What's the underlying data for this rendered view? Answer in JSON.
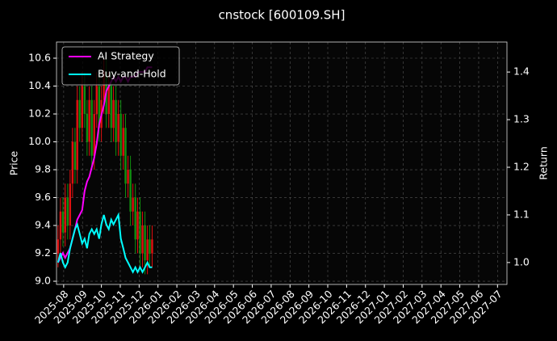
{
  "chart_data": {
    "type": "candlestick",
    "title": "cnstock [600109.SH]",
    "ylabel": "Price",
    "y2label": "Return",
    "x": [
      -0.3,
      -0.17,
      -0.04,
      0.08,
      0.21,
      0.34,
      0.47,
      0.6,
      0.72,
      0.85,
      0.98,
      1.11,
      1.24,
      1.36,
      1.49,
      1.62,
      1.75,
      1.88,
      2.0,
      2.13,
      2.26,
      2.39,
      2.52,
      2.64,
      2.77,
      2.9,
      3.03,
      3.16,
      3.28,
      3.41,
      3.54,
      3.67,
      3.8,
      3.92,
      4.05,
      4.18,
      4.31,
      4.44,
      4.56,
      4.69
    ],
    "open": [
      9.2,
      9.3,
      9.5,
      9.35,
      9.6,
      9.4,
      9.7,
      10.0,
      9.8,
      10.3,
      10.1,
      10.4,
      10.2,
      10.0,
      10.3,
      9.9,
      10.2,
      10.4,
      10.1,
      10.3,
      10.5,
      10.2,
      10.4,
      10.1,
      10.3,
      10.0,
      10.2,
      9.9,
      10.1,
      9.7,
      9.8,
      9.5,
      9.6,
      9.3,
      9.5,
      9.2,
      9.4,
      9.15,
      9.3,
      9.2
    ],
    "high": [
      9.4,
      9.6,
      9.6,
      9.7,
      9.7,
      9.8,
      10.1,
      10.1,
      10.4,
      10.4,
      10.5,
      10.5,
      10.3,
      10.4,
      10.4,
      10.3,
      10.5,
      10.5,
      10.4,
      10.6,
      10.6,
      10.5,
      10.5,
      10.4,
      10.4,
      10.3,
      10.3,
      10.2,
      10.2,
      9.9,
      9.9,
      9.7,
      9.7,
      9.6,
      9.6,
      9.5,
      9.5,
      9.4,
      9.4,
      9.4
    ],
    "low": [
      9.1,
      9.2,
      9.25,
      9.25,
      9.3,
      9.3,
      9.6,
      9.7,
      9.7,
      10.0,
      10.0,
      10.1,
      9.9,
      9.9,
      9.8,
      9.8,
      10.1,
      10.0,
      10.0,
      10.2,
      10.1,
      10.1,
      10.0,
      10.0,
      9.9,
      9.9,
      9.8,
      9.8,
      9.6,
      9.6,
      9.4,
      9.4,
      9.2,
      9.2,
      9.1,
      9.1,
      9.05,
      9.05,
      9.1,
      9.1
    ],
    "close": [
      9.3,
      9.5,
      9.35,
      9.6,
      9.4,
      9.7,
      10.0,
      9.8,
      10.3,
      10.1,
      10.4,
      10.2,
      10.0,
      10.3,
      9.9,
      10.2,
      10.4,
      10.1,
      10.3,
      10.5,
      10.2,
      10.4,
      10.1,
      10.3,
      10.0,
      10.2,
      9.9,
      10.1,
      9.7,
      9.8,
      9.5,
      9.6,
      9.3,
      9.5,
      9.2,
      9.4,
      9.15,
      9.3,
      9.2,
      9.3
    ],
    "up_color": "#e01010",
    "down_color": "#109010",
    "series": [
      {
        "name": "AI Strategy",
        "color": "#ff00ff",
        "axis": "y2",
        "values": [
          1.0,
          1.01,
          1.02,
          1.01,
          1.02,
          1.03,
          1.05,
          1.07,
          1.09,
          1.1,
          1.11,
          1.15,
          1.17,
          1.18,
          1.2,
          1.22,
          1.25,
          1.29,
          1.31,
          1.33,
          1.36,
          1.37,
          1.38,
          1.39,
          1.38,
          1.39,
          1.38,
          1.39,
          1.39,
          1.38,
          1.39,
          1.39,
          1.39,
          1.4,
          1.4,
          1.4,
          1.4,
          1.41,
          1.41,
          1.41
        ]
      },
      {
        "name": "Buy-and-Hold",
        "color": "#00ffff",
        "axis": "y2",
        "values": [
          1.0,
          1.02,
          1.0,
          0.99,
          1.0,
          1.03,
          1.05,
          1.07,
          1.08,
          1.06,
          1.04,
          1.05,
          1.03,
          1.06,
          1.07,
          1.06,
          1.07,
          1.05,
          1.08,
          1.1,
          1.08,
          1.07,
          1.09,
          1.08,
          1.09,
          1.1,
          1.05,
          1.03,
          1.01,
          1.0,
          0.99,
          0.98,
          0.99,
          0.98,
          0.99,
          0.98,
          0.99,
          1.0,
          0.99,
          0.99
        ]
      }
    ],
    "xlim": [
      -0.38,
      23.5
    ],
    "xticks": [
      {
        "value": 0,
        "label": "2025-08"
      },
      {
        "value": 1,
        "label": "2025-09"
      },
      {
        "value": 2,
        "label": "2025-10"
      },
      {
        "value": 3,
        "label": "2025-11"
      },
      {
        "value": 4,
        "label": "2025-12"
      },
      {
        "value": 5,
        "label": "2026-01"
      },
      {
        "value": 6,
        "label": "2026-02"
      },
      {
        "value": 7,
        "label": "2026-03"
      },
      {
        "value": 8,
        "label": "2026-04"
      },
      {
        "value": 9,
        "label": "2026-05"
      },
      {
        "value": 10,
        "label": "2026-06"
      },
      {
        "value": 11,
        "label": "2026-07"
      },
      {
        "value": 12,
        "label": "2026-08"
      },
      {
        "value": 13,
        "label": "2026-09"
      },
      {
        "value": 14,
        "label": "2026-10"
      },
      {
        "value": 15,
        "label": "2026-11"
      },
      {
        "value": 16,
        "label": "2026-12"
      },
      {
        "value": 17,
        "label": "2027-01"
      },
      {
        "value": 18,
        "label": "2027-02"
      },
      {
        "value": 19,
        "label": "2027-03"
      },
      {
        "value": 20,
        "label": "2027-04"
      },
      {
        "value": 21,
        "label": "2027-05"
      },
      {
        "value": 22,
        "label": "2027-06"
      },
      {
        "value": 23,
        "label": "2027-07"
      }
    ],
    "ylim": [
      8.977,
      10.716
    ],
    "yticks": [
      {
        "value": 9,
        "label": "9.0"
      },
      9.2,
      9.4,
      9.6,
      9.8,
      {
        "value": 10,
        "label": "10.0"
      },
      10.2,
      10.4,
      10.6
    ],
    "y2lim": [
      0.954,
      1.463
    ],
    "y2ticks": [
      {
        "value": 1,
        "label": "1.0"
      },
      1.1,
      1.2,
      1.3,
      1.4
    ],
    "grid": true,
    "legend": "upper left"
  }
}
